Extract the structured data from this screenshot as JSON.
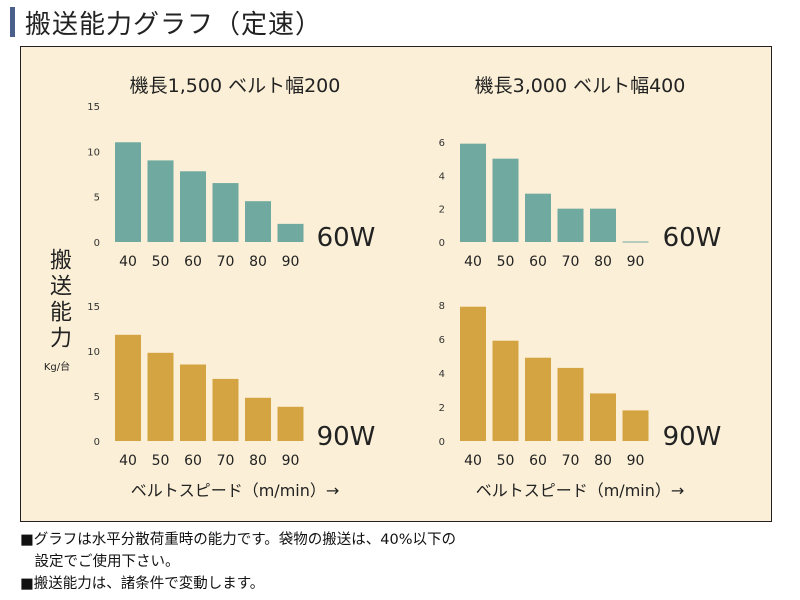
{
  "title": "搬送能力グラフ（定速）",
  "ylabel": {
    "text": "搬送能力",
    "unit": "Kg/台"
  },
  "xlabel": "ベルトスピード（m/min）→",
  "notes": [
    "■グラフは水平分散荷重時の能力です。袋物の搬送は、40%以下の",
    "　設定でご使用下さい。",
    "■搬送能力は、諸条件で変動します。"
  ],
  "colors": {
    "teal": "#6fa9a0",
    "gold": "#d4a442",
    "panel": "#fbf0d7",
    "title_bar": "#4a5f8a"
  },
  "chart_data": [
    {
      "type": "bar",
      "title": "機長1,500 ベルト幅200",
      "annotation": "60W",
      "categories": [
        "40",
        "50",
        "60",
        "70",
        "80",
        "90"
      ],
      "values": [
        11,
        9,
        7.8,
        6.5,
        4.5,
        2
      ],
      "ylim": [
        0,
        15
      ],
      "yticks": [
        "0",
        "5",
        "10",
        "15"
      ],
      "color": "#6fa9a0"
    },
    {
      "type": "bar",
      "title": "機長3,000 ベルト幅400",
      "annotation": "60W",
      "categories": [
        "40",
        "50",
        "60",
        "70",
        "80",
        "90"
      ],
      "values": [
        5.9,
        5,
        2.9,
        2,
        2,
        0
      ],
      "ylim": [
        0,
        6
      ],
      "yticks": [
        "0",
        "2",
        "4",
        "6"
      ],
      "color": "#6fa9a0"
    },
    {
      "type": "bar",
      "title": "",
      "annotation": "90W",
      "categories": [
        "40",
        "50",
        "60",
        "70",
        "80",
        "90"
      ],
      "values": [
        11.8,
        9.8,
        8.5,
        6.9,
        4.8,
        3.8
      ],
      "ylim": [
        0,
        15
      ],
      "yticks": [
        "0",
        "5",
        "10",
        "15"
      ],
      "color": "#d4a442"
    },
    {
      "type": "bar",
      "title": "",
      "annotation": "90W",
      "categories": [
        "40",
        "50",
        "60",
        "70",
        "80",
        "90"
      ],
      "values": [
        7.9,
        5.9,
        4.9,
        4.3,
        2.8,
        1.8
      ],
      "ylim": [
        0,
        8
      ],
      "yticks": [
        "0",
        "2",
        "4",
        "6",
        "8"
      ],
      "color": "#d4a442"
    }
  ]
}
